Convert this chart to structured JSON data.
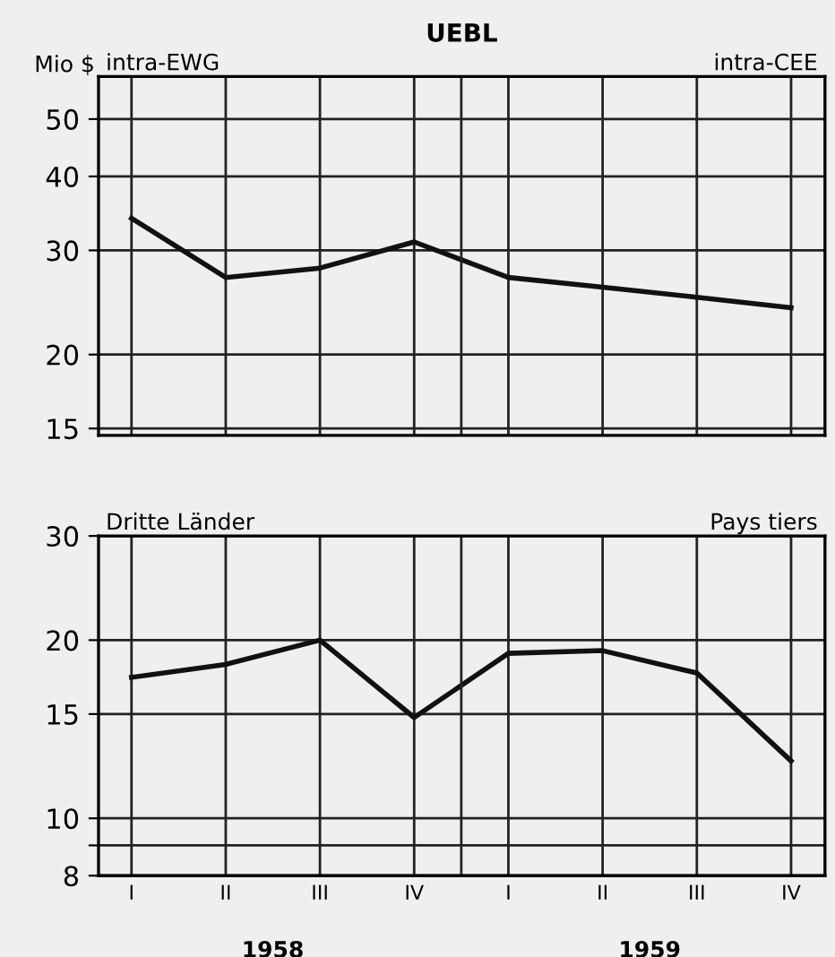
{
  "chart_data": [
    {
      "type": "line",
      "title": "UEBL",
      "ylabel": "Mio $",
      "annotations": [
        "intra-EWG",
        "intra-CEE"
      ],
      "categories": [
        null,
        null,
        null,
        null,
        null,
        null,
        null,
        null
      ],
      "series": [
        {
          "color": "#111111",
          "values": [
            34,
            27,
            28,
            31,
            27,
            26,
            25,
            24
          ]
        }
      ],
      "log": true,
      "ylim": [
        14.6,
        59
      ],
      "yticks": [
        15,
        20,
        30,
        40,
        50
      ],
      "grid": true,
      "tick_labels": "y",
      "marker": "none",
      "line_style": "solid"
    },
    {
      "type": "line",
      "annotations": [
        "Dritte Länder",
        "Pays tiers",
        "1958",
        "1959"
      ],
      "categories": [
        "I",
        "II",
        "III",
        "IV",
        "I",
        "II",
        "III",
        "IV"
      ],
      "series": [
        {
          "color": "#111111",
          "values": [
            17.3,
            18.2,
            20,
            14.8,
            19.0,
            19.2,
            17.6,
            12.5
          ]
        }
      ],
      "log": true,
      "ylim": [
        8,
        30
      ],
      "yticks": [
        8,
        {
          "value": 9,
          "label": null
        },
        10,
        15,
        20,
        30
      ],
      "grid": true,
      "marker": "none",
      "line_style": "solid"
    }
  ]
}
